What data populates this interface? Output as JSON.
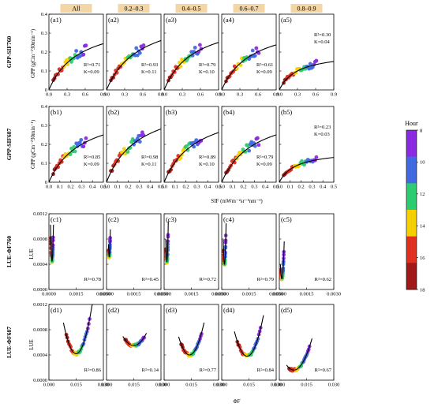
{
  "columns": [
    "All",
    "0.2–0.3",
    "0.4–0.5",
    "0.6–0.7",
    "0.8–0.9"
  ],
  "row_labels": [
    "GPP-SIF760",
    "GPP-SIF687",
    "LUE-ΦF760",
    "LUE-ΦF687"
  ],
  "axis_labels": {
    "gpp_y": "GPP (gCm⁻²30min⁻¹)",
    "sif_x": "SIF (mWm⁻²sr⁻¹nm⁻¹)",
    "lue_y": "LUE",
    "phif_x": "ΦF"
  },
  "colorbar": {
    "title": "Hour",
    "ticks": [
      "8",
      "10",
      "12",
      "14",
      "16",
      "18"
    ],
    "colors": [
      "#8a2be2",
      "#4169e1",
      "#2ecc71",
      "#f5d000",
      "#e03020",
      "#a01818"
    ]
  },
  "chart_data": [
    {
      "type": "scatter",
      "row": "a",
      "panel": "(a1)",
      "xlim": [
        0,
        0.9
      ],
      "ylim": [
        0,
        0.4
      ],
      "xticks": [
        "0.0",
        "0.3",
        "0.6",
        "0.9"
      ],
      "yticks": [
        "0",
        "0.1",
        "0.2",
        "0.3",
        "0.4"
      ],
      "fit": {
        "kind": "saturating",
        "a": 0.38,
        "k": 0.5
      },
      "r2": "R²=0.71",
      "k": "K=0.09"
    },
    {
      "type": "scatter",
      "row": "a",
      "panel": "(a2)",
      "xlim": [
        0,
        0.9
      ],
      "ylim": [
        0,
        0.4
      ],
      "xticks": [
        "0.0",
        "0.3",
        "0.6",
        "0.9"
      ],
      "yticks": [
        "0",
        "0.1",
        "0.2",
        "0.3",
        "0.4"
      ],
      "fit": {
        "kind": "saturating",
        "a": 0.42,
        "k": 0.55
      },
      "r2": "R²=0.93",
      "k": "K=0.11"
    },
    {
      "type": "scatter",
      "row": "a",
      "panel": "(a3)",
      "xlim": [
        0,
        0.9
      ],
      "ylim": [
        0,
        0.4
      ],
      "xticks": [
        "0.0",
        "0.3",
        "0.6",
        "0.9"
      ],
      "yticks": [
        "0",
        "0.1",
        "0.2",
        "0.3",
        "0.4"
      ],
      "fit": {
        "kind": "saturating",
        "a": 0.39,
        "k": 0.5
      },
      "r2": "R²=0.79",
      "k": "K=0.10"
    },
    {
      "type": "scatter",
      "row": "a",
      "panel": "(a4)",
      "xlim": [
        0,
        0.9
      ],
      "ylim": [
        0,
        0.4
      ],
      "xticks": [
        "0.0",
        "0.3",
        "0.6",
        "0.9"
      ],
      "yticks": [
        "0",
        "0.1",
        "0.2",
        "0.3",
        "0.4"
      ],
      "fit": {
        "kind": "saturating",
        "a": 0.37,
        "k": 0.5
      },
      "r2": "R²=0.61",
      "k": "K=0.09"
    },
    {
      "type": "scatter",
      "row": "a",
      "panel": "(a5)",
      "xlim": [
        0,
        0.9
      ],
      "ylim": [
        0,
        0.4
      ],
      "xticks": [
        "0.0",
        "0.3",
        "0.6",
        "0.9"
      ],
      "yticks": [
        "0",
        "0.1",
        "0.2",
        "0.3",
        "0.4"
      ],
      "fit": {
        "kind": "saturating",
        "a": 0.2,
        "k": 0.3
      },
      "r2": "R²=0.30",
      "k": "K=0.04"
    },
    {
      "type": "scatter",
      "row": "b",
      "panel": "(b1)",
      "xlim": [
        0,
        0.5
      ],
      "ylim": [
        0,
        0.4
      ],
      "xticks": [
        "0.0",
        "0.1",
        "0.2",
        "0.3",
        "0.4",
        "0.5"
      ],
      "yticks": [
        "0",
        "0.1",
        "0.2",
        "0.3",
        "0.4"
      ],
      "fit": {
        "kind": "saturating",
        "a": 0.4,
        "k": 0.3
      },
      "r2": "R²=0.85",
      "k": "K=0.09"
    },
    {
      "type": "scatter",
      "row": "b",
      "panel": "(b2)",
      "xlim": [
        0,
        0.5
      ],
      "ylim": [
        0,
        0.4
      ],
      "xticks": [
        "0.0",
        "0.1",
        "0.2",
        "0.3",
        "0.4",
        "0.5"
      ],
      "yticks": [
        "0",
        "0.1",
        "0.2",
        "0.3",
        "0.4"
      ],
      "fit": {
        "kind": "saturating",
        "a": 0.45,
        "k": 0.3
      },
      "r2": "R²=0.98",
      "k": "K=0.11"
    },
    {
      "type": "scatter",
      "row": "b",
      "panel": "(b3)",
      "xlim": [
        0,
        0.5
      ],
      "ylim": [
        0,
        0.4
      ],
      "xticks": [
        "0.0",
        "0.1",
        "0.2",
        "0.3",
        "0.4",
        "0.5"
      ],
      "yticks": [
        "0",
        "0.1",
        "0.2",
        "0.3",
        "0.4"
      ],
      "fit": {
        "kind": "saturating",
        "a": 0.42,
        "k": 0.3
      },
      "r2": "R²=0.89",
      "k": "K=0.10"
    },
    {
      "type": "scatter",
      "row": "b",
      "panel": "(b4)",
      "xlim": [
        0,
        0.5
      ],
      "ylim": [
        0,
        0.4
      ],
      "xticks": [
        "0.0",
        "0.1",
        "0.2",
        "0.3",
        "0.4",
        "0.5"
      ],
      "yticks": [
        "0",
        "0.1",
        "0.2",
        "0.3",
        "0.4"
      ],
      "fit": {
        "kind": "saturating",
        "a": 0.4,
        "k": 0.3
      },
      "r2": "R²=0.79",
      "k": "K=0.09"
    },
    {
      "type": "scatter",
      "row": "b",
      "panel": "(b5)",
      "xlim": [
        0,
        0.5
      ],
      "ylim": [
        0,
        0.4
      ],
      "xticks": [
        "0.0",
        "0.1",
        "0.2",
        "0.3",
        "0.4",
        "0.5"
      ],
      "yticks": [
        "0",
        "0.1",
        "0.2",
        "0.3",
        "0.4"
      ],
      "fit": {
        "kind": "saturating",
        "a": 0.17,
        "k": 0.15
      },
      "r2": "R²=0.23",
      "k": "K=0.03"
    },
    {
      "type": "scatter",
      "row": "c",
      "panel": "(c1)",
      "xlim": [
        0,
        0.03
      ],
      "ylim": [
        0,
        0.0012
      ],
      "xticks": [
        "0.0000",
        "0.0015",
        "0.0030"
      ],
      "yticks": [
        "0.0000",
        "0.0004",
        "0.0008",
        "0.0012"
      ],
      "fit": {
        "kind": "parabola",
        "x0": 0.0017,
        "y0": 0.00045,
        "c": 900,
        "xmin": 0.0009,
        "xmax": 0.0025
      },
      "r2": "R²=0.78"
    },
    {
      "type": "scatter",
      "row": "c",
      "panel": "(c2)",
      "xlim": [
        0,
        0.03
      ],
      "ylim": [
        0,
        0.0012
      ],
      "xticks": [
        "0.0000",
        "0.0015",
        "0.0030"
      ],
      "yticks": [
        "0.0000",
        "0.0004",
        "0.0008",
        "0.0012"
      ],
      "fit": {
        "kind": "parabola",
        "x0": 0.0015,
        "y0": 0.00052,
        "c": 1200,
        "xmin": 0.0011,
        "xmax": 0.0021
      },
      "r2": "R²=0.45"
    },
    {
      "type": "scatter",
      "row": "c",
      "panel": "(c3)",
      "xlim": [
        0,
        0.03
      ],
      "ylim": [
        0,
        0.0012
      ],
      "xticks": [
        "0.0000",
        "0.0015",
        "0.0030"
      ],
      "yticks": [
        "0.0000",
        "0.0004",
        "0.0008",
        "0.0012"
      ],
      "fit": {
        "kind": "parabola",
        "x0": 0.0015,
        "y0": 0.00044,
        "c": 1000,
        "xmin": 0.0009,
        "xmax": 0.0023
      },
      "r2": "R²=0.72"
    },
    {
      "type": "scatter",
      "row": "c",
      "panel": "(c4)",
      "xlim": [
        0,
        0.03
      ],
      "ylim": [
        0,
        0.0012
      ],
      "xticks": [
        "0.0000",
        "0.0015",
        "0.0030"
      ],
      "yticks": [
        "0.0000",
        "0.0004",
        "0.0008",
        "0.0012"
      ],
      "fit": {
        "kind": "parabola",
        "x0": 0.0015,
        "y0": 0.0004,
        "c": 800,
        "xmin": 0.0008,
        "xmax": 0.0024
      },
      "r2": "R²=0.79"
    },
    {
      "type": "scatter",
      "row": "c",
      "panel": "(c5)",
      "xlim": [
        0,
        0.03
      ],
      "ylim": [
        0,
        0.0012
      ],
      "xticks": [
        "0.0000",
        "0.0015",
        "0.0030"
      ],
      "yticks": [
        "0.0000",
        "0.0004",
        "0.0008",
        "0.0012"
      ],
      "fit": {
        "kind": "parabola",
        "x0": 0.0014,
        "y0": 0.00017,
        "c": 350,
        "xmin": 0.0006,
        "xmax": 0.0027
      },
      "r2": "R²=0.62"
    },
    {
      "type": "scatter",
      "row": "d",
      "panel": "(d1)",
      "xlim": [
        0,
        0.03
      ],
      "ylim": [
        0,
        0.0012
      ],
      "xticks": [
        "0.000",
        "0.015",
        "0.030"
      ],
      "yticks": [
        "0.0000",
        "0.0004",
        "0.0008",
        "0.0012"
      ],
      "fit": {
        "kind": "parabola",
        "x0": 0.015,
        "y0": 0.00042,
        "c": 10,
        "xmin": 0.008,
        "xmax": 0.024
      },
      "r2": "R²=0.86"
    },
    {
      "type": "scatter",
      "row": "d",
      "panel": "(d2)",
      "xlim": [
        0,
        0.03
      ],
      "ylim": [
        0,
        0.0012
      ],
      "xticks": [
        "0.000",
        "0.015",
        "0.030"
      ],
      "yticks": [
        "0.0000",
        "0.0004",
        "0.0008",
        "0.0012"
      ],
      "fit": {
        "kind": "parabola",
        "x0": 0.015,
        "y0": 0.00055,
        "c": 4,
        "xmin": 0.009,
        "xmax": 0.022
      },
      "r2": "R²=0.14"
    },
    {
      "type": "scatter",
      "row": "d",
      "panel": "(d3)",
      "xlim": [
        0,
        0.03
      ],
      "ylim": [
        0,
        0.0012
      ],
      "xticks": [
        "0.000",
        "0.015",
        "0.030"
      ],
      "yticks": [
        "0.0000",
        "0.0004",
        "0.0008",
        "0.0012"
      ],
      "fit": {
        "kind": "parabola",
        "x0": 0.014,
        "y0": 0.0004,
        "c": 8,
        "xmin": 0.008,
        "xmax": 0.022
      },
      "r2": "R²=0.77"
    },
    {
      "type": "scatter",
      "row": "d",
      "panel": "(d4)",
      "xlim": [
        0,
        0.03
      ],
      "ylim": [
        0,
        0.0012
      ],
      "xticks": [
        "0.000",
        "0.015",
        "0.030"
      ],
      "yticks": [
        "0.0000",
        "0.0004",
        "0.0008",
        "0.0012"
      ],
      "fit": {
        "kind": "parabola",
        "x0": 0.014,
        "y0": 0.00038,
        "c": 8,
        "xmin": 0.007,
        "xmax": 0.023
      },
      "r2": "R²=0.84"
    },
    {
      "type": "scatter",
      "row": "d",
      "panel": "(d5)",
      "xlim": [
        0,
        0.03
      ],
      "ylim": [
        0,
        0.0012
      ],
      "xticks": [
        "0.000",
        "0.015",
        "0.030"
      ],
      "yticks": [
        "0.0000",
        "0.0004",
        "0.0008",
        "0.0012"
      ],
      "fit": {
        "kind": "parabola",
        "x0": 0.008,
        "y0": 0.00016,
        "c": 5,
        "xmin": 0.004,
        "xmax": 0.018
      },
      "r2": "R²=0.67"
    }
  ]
}
